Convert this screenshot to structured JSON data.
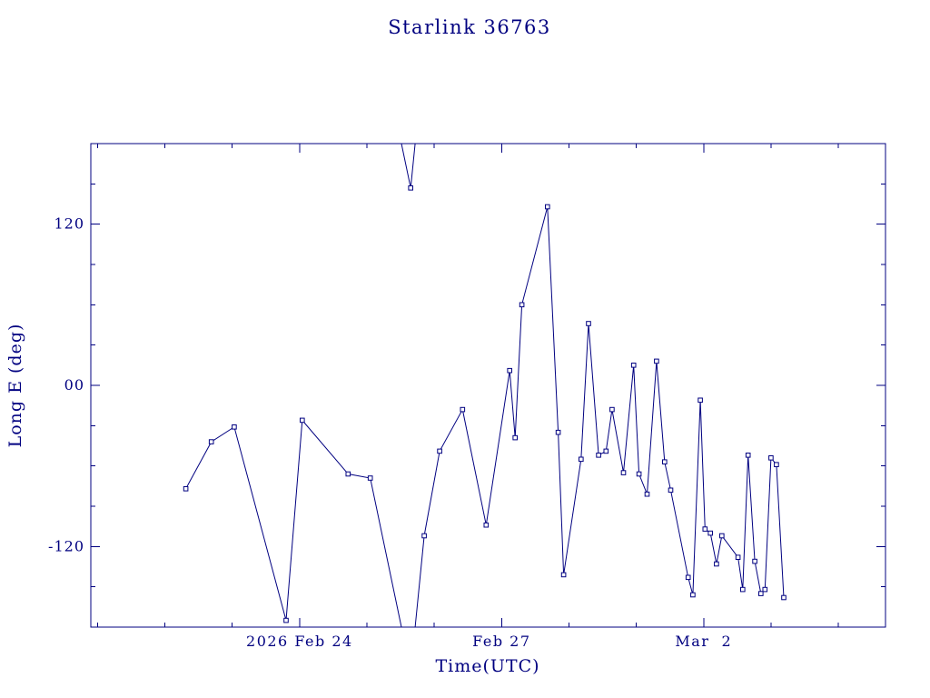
{
  "window": {
    "background": "#ffffff",
    "accent_color": "#000080"
  },
  "chart_data": {
    "type": "line",
    "title": "Starlink 36763",
    "xlabel": "Time(UTC)",
    "ylabel": "Long E (deg)",
    "line_color": "#000080",
    "background": "#ffffff",
    "marker": "open-square",
    "grid": "off",
    "legend": "none",
    "wrap_degrees": 360,
    "xlim": [
      -0.1,
      11.7
    ],
    "ylim": [
      -180,
      180
    ],
    "x_axis_units": "days (tick 3 = 2026 Feb 24, tick 6 = Feb 27, tick 9 = Mar 2)",
    "x_ticks": [
      {
        "x": 3,
        "label": "2026 Feb 24"
      },
      {
        "x": 6,
        "label": "Feb 27"
      },
      {
        "x": 9,
        "label": "Mar  2"
      }
    ],
    "x_minor_ticks": [
      0,
      1,
      2,
      4,
      5,
      7,
      8,
      10,
      11
    ],
    "y_ticks": [
      {
        "y": 120,
        "label": "120"
      },
      {
        "y": 0,
        "label": "00"
      },
      {
        "y": -120,
        "label": "-120"
      }
    ],
    "y_minor_ticks": [
      -150,
      -90,
      -60,
      -30,
      30,
      60,
      90,
      150
    ],
    "points": [
      [
        1.31,
        -77
      ],
      [
        1.69,
        -42
      ],
      [
        2.03,
        -31
      ],
      [
        2.8,
        -175
      ],
      [
        3.04,
        -26
      ],
      [
        3.72,
        -66
      ],
      [
        4.05,
        -69
      ],
      [
        4.65,
        147
      ],
      [
        4.85,
        -112
      ],
      [
        5.08,
        -49
      ],
      [
        5.42,
        -18
      ],
      [
        5.77,
        -104
      ],
      [
        6.12,
        11
      ],
      [
        6.2,
        -39
      ],
      [
        6.3,
        60
      ],
      [
        6.68,
        133
      ],
      [
        6.84,
        -35
      ],
      [
        6.92,
        -141
      ],
      [
        7.18,
        -55
      ],
      [
        7.29,
        46
      ],
      [
        7.44,
        -52
      ],
      [
        7.55,
        -49
      ],
      [
        7.64,
        -18
      ],
      [
        7.81,
        -65
      ],
      [
        7.96,
        15
      ],
      [
        8.04,
        -66
      ],
      [
        8.16,
        -81
      ],
      [
        8.3,
        18
      ],
      [
        8.42,
        -57
      ],
      [
        8.51,
        -78
      ],
      [
        8.77,
        -143
      ],
      [
        8.84,
        -156
      ],
      [
        8.95,
        -11
      ],
      [
        9.02,
        -107
      ],
      [
        9.1,
        -110
      ],
      [
        9.19,
        -133
      ],
      [
        9.27,
        -112
      ],
      [
        9.51,
        -128
      ],
      [
        9.58,
        -152
      ],
      [
        9.66,
        -52
      ],
      [
        9.76,
        -131
      ],
      [
        9.85,
        -155
      ],
      [
        9.91,
        -152
      ],
      [
        10.0,
        -54
      ],
      [
        10.08,
        -59
      ],
      [
        10.19,
        -158
      ]
    ]
  }
}
